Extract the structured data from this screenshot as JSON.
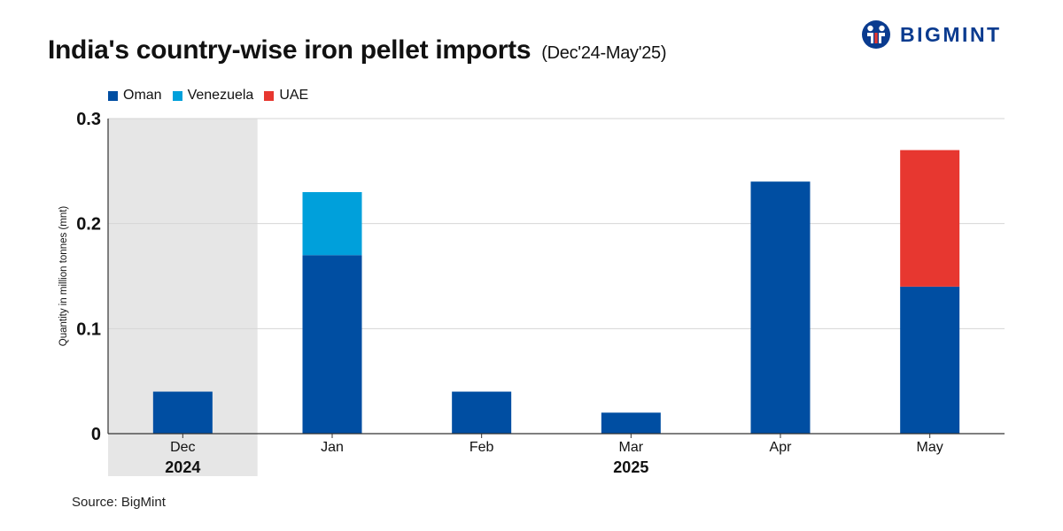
{
  "title": "India's country-wise iron pellet imports",
  "subtitle": "(Dec'24-May'25)",
  "brand": {
    "name": "BIGMINT",
    "logo_icon": "bigmint-logo-icon"
  },
  "source": "Source: BigMint",
  "colors": {
    "Oman": "#004ea2",
    "Venezuela": "#00a0db",
    "UAE": "#e73730",
    "shade": "#e6e6e6",
    "grid": "#d6d6d6"
  },
  "chart_data": {
    "type": "bar",
    "stacked": true,
    "categories": [
      "Dec",
      "Jan",
      "Feb",
      "Mar",
      "Apr",
      "May"
    ],
    "groups": [
      {
        "label": "2024",
        "categories": [
          "Dec"
        ],
        "shaded": true
      },
      {
        "label": "2025",
        "categories": [
          "Jan",
          "Feb",
          "Mar",
          "Apr",
          "May"
        ],
        "shaded": false
      }
    ],
    "series": [
      {
        "name": "Oman",
        "values": [
          0.04,
          0.17,
          0.04,
          0.02,
          0.24,
          0.14
        ]
      },
      {
        "name": "Venezuela",
        "values": [
          0,
          0.06,
          0,
          0,
          0,
          0
        ]
      },
      {
        "name": "UAE",
        "values": [
          0,
          0,
          0,
          0,
          0,
          0.13
        ]
      }
    ],
    "ylabel": "Quantity in million tonnes (mnt)",
    "xlabel": "",
    "ylim": [
      0,
      0.3
    ],
    "yticks": [
      0,
      0.1,
      0.2,
      0.3
    ],
    "ytick_labels": [
      "0",
      "0.1",
      "0.2",
      "0.3"
    ],
    "grid": true,
    "legend_position": "top-left"
  }
}
